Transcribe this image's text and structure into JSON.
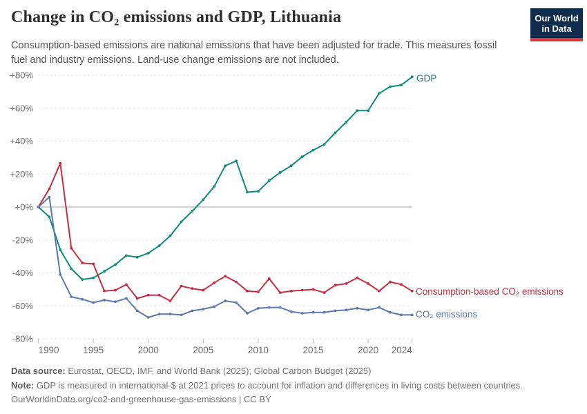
{
  "header": {
    "title": "Change in CO₂ emissions and GDP, Lithuania",
    "subtitle": "Consumption-based emissions are national emissions that have been adjusted for trade. This measures fossil fuel and industry emissions. Land-use change emissions are not included.",
    "logo": {
      "line1": "Our World",
      "line2": "in Data",
      "bg_color": "#102d4e",
      "accent_color": "#d9383d"
    }
  },
  "chart_data": {
    "type": "line",
    "title": "Change in CO₂ emissions and GDP, Lithuania",
    "unit": "%",
    "grid": "horizontal-dashed",
    "zero_line": true,
    "legend_position": "end-of-line-labels-right",
    "xlim": [
      1990,
      2024
    ],
    "ylim": [
      -80,
      80
    ],
    "x": [
      1990,
      1991,
      1992,
      1993,
      1994,
      1995,
      1996,
      1997,
      1998,
      1999,
      2000,
      2001,
      2002,
      2003,
      2004,
      2005,
      2006,
      2007,
      2008,
      2009,
      2010,
      2011,
      2012,
      2013,
      2014,
      2015,
      2016,
      2017,
      2018,
      2019,
      2020,
      2021,
      2022,
      2023,
      2024
    ],
    "y_ticks": [
      {
        "value": 80,
        "label": "+80%"
      },
      {
        "value": 60,
        "label": "+60%"
      },
      {
        "value": 40,
        "label": "+40%"
      },
      {
        "value": 20,
        "label": "+20%"
      },
      {
        "value": 0,
        "label": "+0%"
      },
      {
        "value": -20,
        "label": "-20%"
      },
      {
        "value": -40,
        "label": "-40%"
      },
      {
        "value": -60,
        "label": "-60%"
      },
      {
        "value": -80,
        "label": "-80%"
      }
    ],
    "x_ticks": [
      {
        "value": 1990,
        "label": "1990"
      },
      {
        "value": 1995,
        "label": "1995"
      },
      {
        "value": 2000,
        "label": "2000"
      },
      {
        "value": 2005,
        "label": "2005"
      },
      {
        "value": 2010,
        "label": "2010"
      },
      {
        "value": 2015,
        "label": "2015"
      },
      {
        "value": 2020,
        "label": "2020"
      },
      {
        "value": 2024,
        "label": "2024"
      }
    ],
    "series": [
      {
        "name": "GDP",
        "color": "#10897b",
        "values": [
          0,
          -6,
          -26,
          -37.5,
          -44,
          -43,
          -39,
          -35,
          -29.5,
          -30.5,
          -28,
          -23.5,
          -17.5,
          -9,
          -2.5,
          4.5,
          12.5,
          25,
          28,
          9,
          9.5,
          16,
          21,
          25,
          30.5,
          34.5,
          38,
          45,
          51.5,
          58.5,
          58.5,
          69,
          73,
          74,
          79
        ]
      },
      {
        "name": "Consumption-based CO₂ emissions",
        "color": "#c32e40",
        "values": [
          0,
          11,
          26.5,
          -25,
          -34,
          -34.5,
          -51,
          -50.5,
          -47,
          -55.5,
          -53.5,
          -53.5,
          -57,
          -48,
          -49.5,
          -50.5,
          -46,
          -42,
          -45.5,
          -51,
          -51.5,
          -43.5,
          -52,
          -51,
          -50.5,
          -50,
          -52,
          -47.5,
          -46.5,
          -43,
          -46.5,
          -51,
          -45.5,
          -47,
          -51
        ]
      },
      {
        "name": "CO₂ emissions",
        "color": "#5b79ac",
        "values": [
          0,
          6,
          -41,
          -54.5,
          -56,
          -58,
          -56.5,
          -57.5,
          -55.5,
          -63,
          -67,
          -65,
          -65,
          -65.5,
          -63,
          -62,
          -60.5,
          -57,
          -58,
          -64.5,
          -61.5,
          -61,
          -61,
          -63.5,
          -64.5,
          -64,
          -64,
          -63,
          -62.5,
          -61.5,
          -62.5,
          -61,
          -64,
          -65.5,
          -65.5
        ]
      }
    ]
  },
  "footer": {
    "datasource_label": "Data source:",
    "datasource_text": " Eurostat, OECD, IMF, and World Bank (2025); Global Carbon Budget (2025)",
    "note_label": "Note:",
    "note_text": " GDP is measured in international-$ at 2021 prices to account for inflation and differences in living costs between countries.",
    "url_text": "OurWorldinData.org/co2-and-greenhouse-gas-emissions | CC BY"
  }
}
